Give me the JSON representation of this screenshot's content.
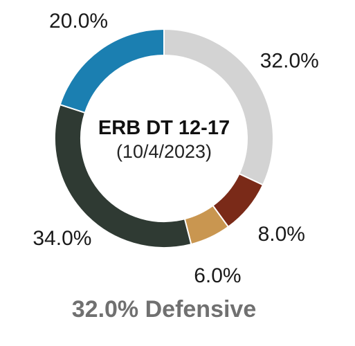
{
  "chart_data": {
    "type": "pie",
    "style": "donut",
    "title": "ERB DT 12-17",
    "subtitle": "(10/4/2023)",
    "caption": "32.0% Defensive",
    "slices": [
      {
        "value": 32.0,
        "label": "32.0%",
        "color": "#d3d3d3"
      },
      {
        "value": 8.0,
        "label": "8.0%",
        "color": "#7a2a18"
      },
      {
        "value": 6.0,
        "label": "6.0%",
        "color": "#c99650"
      },
      {
        "value": 34.0,
        "label": "34.0%",
        "color": "#2f3a33"
      },
      {
        "value": 20.0,
        "label": "20.0%",
        "color": "#1b7fb1"
      }
    ],
    "start_angle_deg": 0,
    "direction": "clockwise",
    "separator_color": "#ffffff"
  }
}
